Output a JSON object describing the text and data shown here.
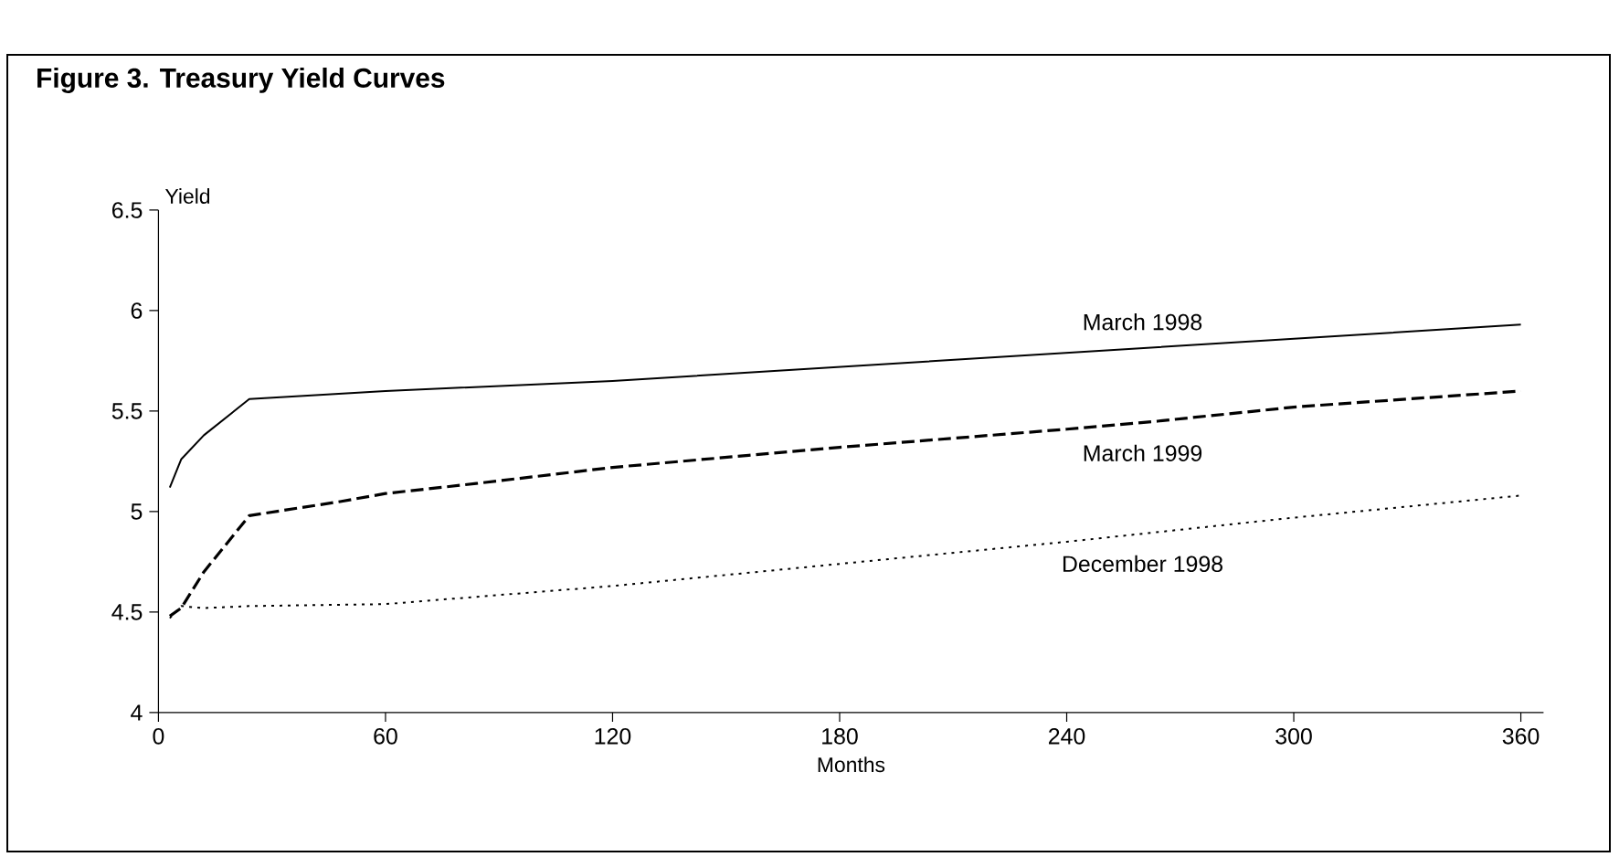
{
  "chart_data": {
    "type": "line",
    "title": "Figure 3.  Treasury Yield Curves",
    "xlabel": "Months",
    "ylabel": "Yield",
    "xlim": [
      0,
      366
    ],
    "xticks": [
      0,
      60,
      120,
      180,
      240,
      300,
      360
    ],
    "ylim": [
      4,
      6.5
    ],
    "yticks": [
      4,
      4.5,
      5,
      5.5,
      6,
      6.5
    ],
    "grid": false,
    "marker": "none",
    "series": [
      {
        "name": "March 1998",
        "color": "#000000",
        "line_style": "solid",
        "x": [
          3,
          6,
          12,
          24,
          60,
          120,
          360
        ],
        "values": [
          5.12,
          5.26,
          5.38,
          5.56,
          5.6,
          5.65,
          5.93
        ]
      },
      {
        "name": "March 1999",
        "color": "#000000",
        "line_style": "dashed",
        "x": [
          3,
          6,
          12,
          24,
          48,
          60,
          84,
          120,
          156,
          180,
          240,
          264,
          300,
          360
        ],
        "values": [
          4.48,
          4.52,
          4.7,
          4.98,
          5.05,
          5.09,
          5.14,
          5.22,
          5.28,
          5.32,
          5.41,
          5.45,
          5.52,
          5.6
        ]
      },
      {
        "name": "December 1998",
        "color": "#000000",
        "line_style": "dotted",
        "x": [
          3,
          6,
          12,
          24,
          60,
          120,
          180,
          240,
          300,
          360
        ],
        "values": [
          4.47,
          4.53,
          4.52,
          4.53,
          4.54,
          4.63,
          4.74,
          4.85,
          4.97,
          5.08
        ]
      }
    ]
  }
}
